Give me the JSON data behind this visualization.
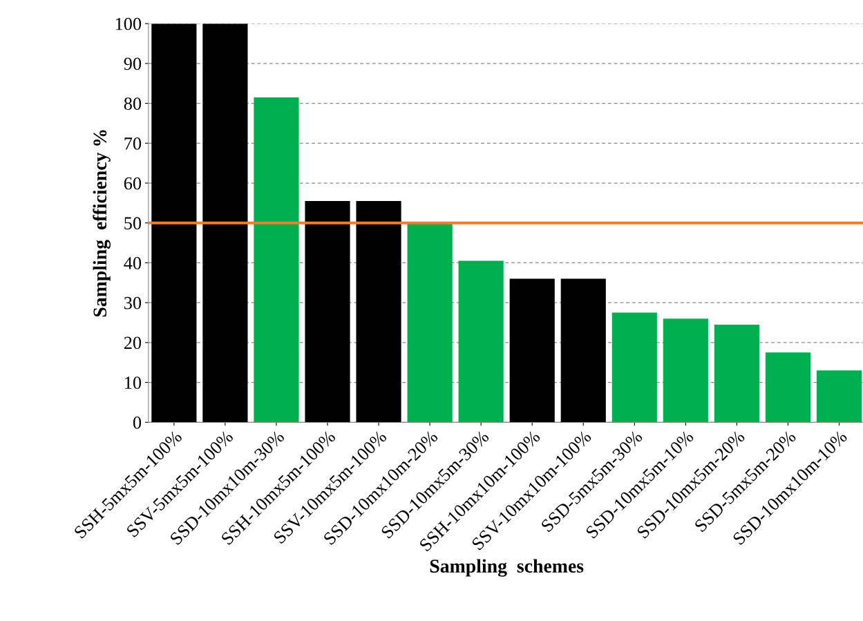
{
  "chart_data": {
    "type": "bar",
    "xlabel": "Sampling  schemes",
    "ylabel": "Sampling  efficiency %",
    "categories": [
      "SSH-5mx5m-100%",
      "SSV-5mx5m-100%",
      "SSD-10mx10m-30%",
      "SSH-10mx5m-100%",
      "SSV-10mx5m-100%",
      "SSD-10mx10m-20%",
      "SSD-10mx5m-30%",
      "SSH-10mx10m-100%",
      "SSV-10mx10m-100%",
      "SSD-5mx5m-30%",
      "SSD-10mx5m-10%",
      "SSD-10mx5m-20%",
      "SSD-5mx5m-20%",
      "SSD-10mx10m-10%"
    ],
    "values": [
      100,
      100,
      81.5,
      55.5,
      55.5,
      50,
      40.5,
      36,
      36,
      27.5,
      26,
      24.5,
      17.5,
      13
    ],
    "colors": [
      "#000000",
      "#000000",
      "#00b050",
      "#000000",
      "#000000",
      "#00b050",
      "#00b050",
      "#000000",
      "#000000",
      "#00b050",
      "#00b050",
      "#00b050",
      "#00b050",
      "#00b050"
    ],
    "ylim": [
      0,
      100
    ],
    "yticks": [
      0,
      10,
      20,
      30,
      40,
      50,
      60,
      70,
      80,
      90,
      100
    ],
    "grid": "y",
    "ref_lines": [
      {
        "axis": "y",
        "value": 50,
        "color": "#ed7d31",
        "line_style": "solid"
      }
    ]
  }
}
